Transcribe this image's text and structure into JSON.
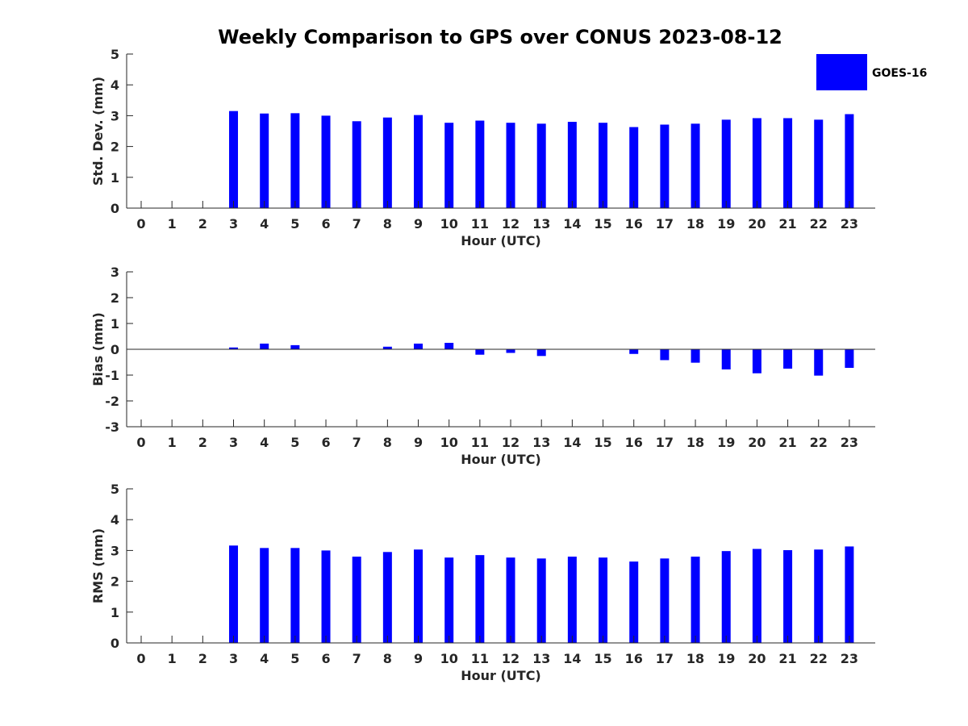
{
  "chart_data": {
    "title": "Weekly Comparison to GPS over CONUS 2023-08-12",
    "legend": {
      "entries": [
        "GOES-16"
      ],
      "placement": "top-right",
      "color": "#0000ff"
    },
    "bar_color": "#0000ff",
    "axis_color": "#262626",
    "panels": [
      {
        "type": "bar",
        "ylabel": "Std. Dev. (mm)",
        "xlabel": "Hour (UTC)",
        "ylim": [
          0,
          5
        ],
        "yticks": [
          "0",
          "1",
          "2",
          "3",
          "4",
          "5"
        ],
        "categories": [
          "0",
          "1",
          "2",
          "3",
          "4",
          "5",
          "6",
          "7",
          "8",
          "9",
          "10",
          "11",
          "12",
          "13",
          "14",
          "15",
          "16",
          "17",
          "18",
          "19",
          "20",
          "21",
          "22",
          "23"
        ],
        "series": [
          {
            "name": "GOES-16",
            "values": [
              null,
              null,
              null,
              3.15,
              3.07,
              3.08,
              3.0,
              2.82,
              2.94,
              3.02,
              2.77,
              2.84,
              2.77,
              2.74,
              2.8,
              2.77,
              2.63,
              2.71,
              2.74,
              2.87,
              2.92,
              2.92,
              2.87,
              3.05
            ]
          }
        ]
      },
      {
        "type": "bar",
        "ylabel": "Bias (mm)",
        "xlabel": "Hour (UTC)",
        "ylim": [
          -3,
          3
        ],
        "yticks": [
          "-3",
          "-2",
          "-1",
          "0",
          "1",
          "2",
          "3"
        ],
        "categories": [
          "0",
          "1",
          "2",
          "3",
          "4",
          "5",
          "6",
          "7",
          "8",
          "9",
          "10",
          "11",
          "12",
          "13",
          "14",
          "15",
          "16",
          "17",
          "18",
          "19",
          "20",
          "21",
          "22",
          "23"
        ],
        "series": [
          {
            "name": "GOES-16",
            "values": [
              null,
              null,
              null,
              0.07,
              0.22,
              0.16,
              -0.01,
              -0.01,
              0.1,
              0.22,
              0.25,
              -0.21,
              -0.14,
              -0.26,
              0.0,
              0.0,
              -0.18,
              -0.42,
              -0.52,
              -0.78,
              -0.93,
              -0.75,
              -1.02,
              -0.72
            ]
          }
        ]
      },
      {
        "type": "bar",
        "ylabel": "RMS (mm)",
        "xlabel": "Hour (UTC)",
        "ylim": [
          0,
          5
        ],
        "yticks": [
          "0",
          "1",
          "2",
          "3",
          "4",
          "5"
        ],
        "categories": [
          "0",
          "1",
          "2",
          "3",
          "4",
          "5",
          "6",
          "7",
          "8",
          "9",
          "10",
          "11",
          "12",
          "13",
          "14",
          "15",
          "16",
          "17",
          "18",
          "19",
          "20",
          "21",
          "22",
          "23"
        ],
        "series": [
          {
            "name": "GOES-16",
            "values": [
              null,
              null,
              null,
              3.16,
              3.08,
              3.08,
              3.0,
              2.8,
              2.95,
              3.03,
              2.77,
              2.85,
              2.77,
              2.74,
              2.8,
              2.77,
              2.64,
              2.74,
              2.8,
              2.98,
              3.05,
              3.01,
              3.03,
              3.13
            ]
          }
        ]
      }
    ]
  }
}
